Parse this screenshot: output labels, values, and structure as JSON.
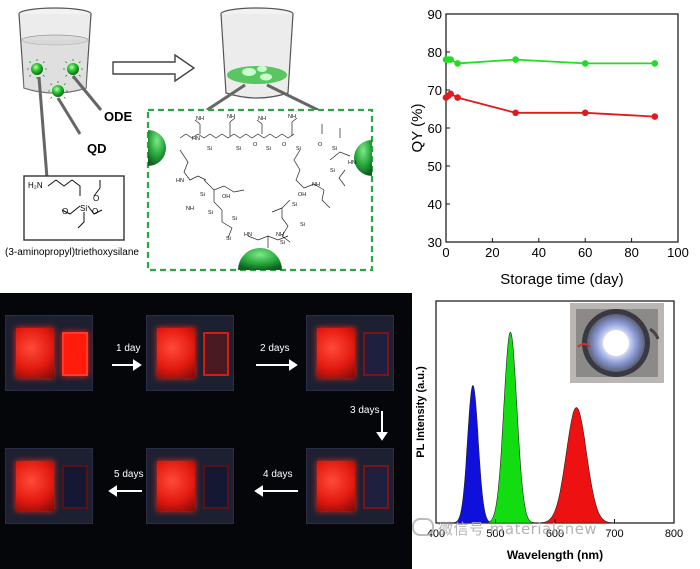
{
  "schematic": {
    "qd_label": "QD",
    "ode_label": "ODE",
    "silane_name": "(3-aminopropyl)triethoxysilane",
    "silane_struct": {
      "nh2": "H₂N",
      "si": "Si",
      "o": "O"
    }
  },
  "photos": {
    "steps": [
      "1 day",
      "2 days",
      "3 days",
      "4 days",
      "5 days"
    ]
  },
  "qy_chart": {
    "type": "line",
    "xlabel": "Storage time (day)",
    "ylabel": "QY (%)",
    "xlim": [
      0,
      100
    ],
    "ylim": [
      30,
      90
    ],
    "xticks": [
      0,
      20,
      40,
      60,
      80,
      100
    ],
    "yticks": [
      30,
      40,
      50,
      60,
      70,
      80,
      90
    ],
    "series": [
      {
        "color": "#22dd22",
        "x": [
          0,
          1,
          2,
          5,
          30,
          60,
          90
        ],
        "y": [
          78,
          78,
          78,
          77,
          78,
          77,
          77
        ]
      },
      {
        "color": "#e01b1b",
        "x": [
          0,
          1,
          2,
          5,
          30,
          60,
          90
        ],
        "y": [
          68,
          68.5,
          69,
          68,
          64,
          64,
          63
        ]
      }
    ]
  },
  "pl_chart": {
    "type": "area",
    "ylabel": "PL Intensity (a.u.)",
    "xlabel": "Wavelength (nm)",
    "xlim": [
      400,
      800
    ],
    "xticks": [
      400,
      500,
      600,
      700,
      800
    ],
    "peaks": [
      {
        "color": "#1010dd",
        "center": 462,
        "height": 0.62,
        "sigma": 9
      },
      {
        "color": "#11dd11",
        "center": 525,
        "height": 0.86,
        "sigma": 11
      },
      {
        "color": "#ee1111",
        "center": 636,
        "height": 0.52,
        "sigma": 17
      }
    ]
  },
  "watermark": {
    "text": "微信号 materialsnew"
  }
}
